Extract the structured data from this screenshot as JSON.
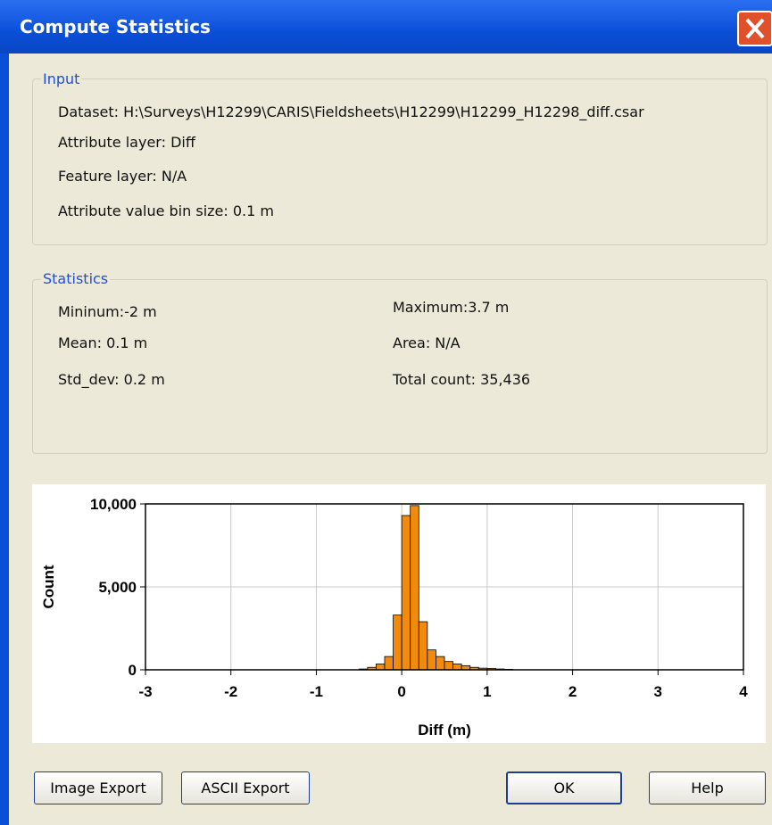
{
  "dialog": {
    "title": "Compute Statistics"
  },
  "input": {
    "label": "Input",
    "lines": [
      "Dataset: H:\\Surveys\\H12299\\CARIS\\Fieldsheets\\H12299\\H12299_H12298_diff.csar",
      "Attribute layer: Diff",
      "Feature layer: N/A",
      "Attribute value bin size: 0.1 m"
    ]
  },
  "statistics": {
    "label": "Statistics",
    "items": [
      "Mininum:-2 m",
      "Mean: 0.1 m",
      "Std_dev: 0.2 m",
      "Maximum:3.7 m",
      "Area: N/A",
      "Total count: 35,436"
    ]
  },
  "chart_data": {
    "type": "histogram",
    "x_label": "Diff (m)",
    "y_label": "Count",
    "bins": [
      -0.5,
      -0.4,
      -0.3,
      -0.2,
      -0.1,
      0,
      0.1,
      0.2,
      0.3,
      0.4,
      0.5,
      0.6,
      0.7,
      0.8,
      0.9,
      1.0,
      1.1,
      1.2,
      1.3
    ],
    "values": [
      50,
      150,
      350,
      800,
      3300,
      9300,
      9900,
      2900,
      1200,
      800,
      500,
      350,
      250,
      150,
      100,
      80,
      50,
      30
    ],
    "color": "#f28a0c",
    "xlim": [
      -3,
      4
    ],
    "xticks": [
      -3,
      -2,
      -1,
      0,
      1,
      2,
      3,
      4
    ],
    "ylim": [
      0,
      10000
    ],
    "yticks": [
      0,
      {
        "value": 5000,
        "label": "5,000"
      },
      {
        "value": 10000,
        "label": "10,000"
      }
    ],
    "grid": true
  },
  "buttons": [
    "Image Export",
    "ASCII Export",
    "OK",
    "Help"
  ]
}
